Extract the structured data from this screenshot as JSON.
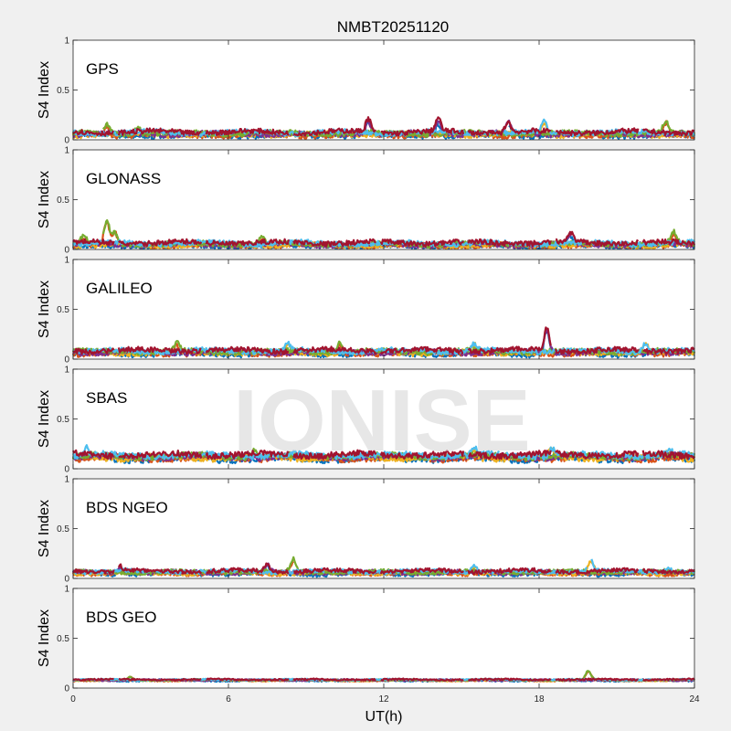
{
  "chart_data": {
    "type": "scatter",
    "title": "NMBT20251120",
    "xlabel": "UT(h)",
    "ylabel": "S4 Index",
    "xlim": [
      0,
      24
    ],
    "ylim": [
      0,
      1
    ],
    "xticks": [
      0,
      6,
      12,
      18,
      24
    ],
    "xtick_labels": [
      "0",
      "6",
      "12",
      "18",
      "24"
    ],
    "yticks": [
      0,
      0.5,
      1
    ],
    "ytick_labels": [
      "0",
      "0.5",
      "1"
    ],
    "grid": false,
    "legend": "none",
    "watermark": "IONISE",
    "series_colors": [
      "#0072BD",
      "#D95319",
      "#EDB120",
      "#7E2F8E",
      "#77AC30",
      "#4DBEEE",
      "#A2142F"
    ],
    "panels": [
      {
        "label": "GPS",
        "baseline": 0.06,
        "noise": 0.05,
        "bumps": [
          [
            1.3,
            0.15
          ],
          [
            2.5,
            0.13
          ],
          [
            11.4,
            0.2
          ],
          [
            14.1,
            0.19
          ],
          [
            16.8,
            0.17
          ],
          [
            18.2,
            0.17
          ],
          [
            22.9,
            0.18
          ]
        ]
      },
      {
        "label": "GLONASS",
        "baseline": 0.05,
        "noise": 0.05,
        "bumps": [
          [
            0.4,
            0.13
          ],
          [
            1.3,
            0.28
          ],
          [
            1.6,
            0.17
          ],
          [
            7.3,
            0.12
          ],
          [
            19.2,
            0.15
          ],
          [
            23.2,
            0.16
          ]
        ]
      },
      {
        "label": "GALILEO",
        "baseline": 0.07,
        "noise": 0.05,
        "bumps": [
          [
            4,
            0.16
          ],
          [
            8.3,
            0.14
          ],
          [
            10.3,
            0.16
          ],
          [
            15.5,
            0.14
          ],
          [
            18.3,
            0.3
          ],
          [
            22.1,
            0.15
          ]
        ]
      },
      {
        "label": "SBAS",
        "baseline": 0.12,
        "noise": 0.06,
        "bumps": [
          [
            0.5,
            0.2
          ],
          [
            7,
            0.18
          ],
          [
            15.5,
            0.19
          ],
          [
            18.5,
            0.2
          ],
          [
            23,
            0.18
          ]
        ]
      },
      {
        "label": "BDS NGEO",
        "baseline": 0.06,
        "noise": 0.04,
        "bumps": [
          [
            1.8,
            0.11
          ],
          [
            7.5,
            0.13
          ],
          [
            8.5,
            0.19
          ],
          [
            15.5,
            0.13
          ],
          [
            20,
            0.18
          ],
          [
            23,
            0.11
          ]
        ]
      },
      {
        "label": "BDS GEO",
        "baseline": 0.08,
        "noise": 0.015,
        "bumps": [
          [
            2.2,
            0.11
          ],
          [
            19.9,
            0.17
          ]
        ]
      }
    ]
  }
}
